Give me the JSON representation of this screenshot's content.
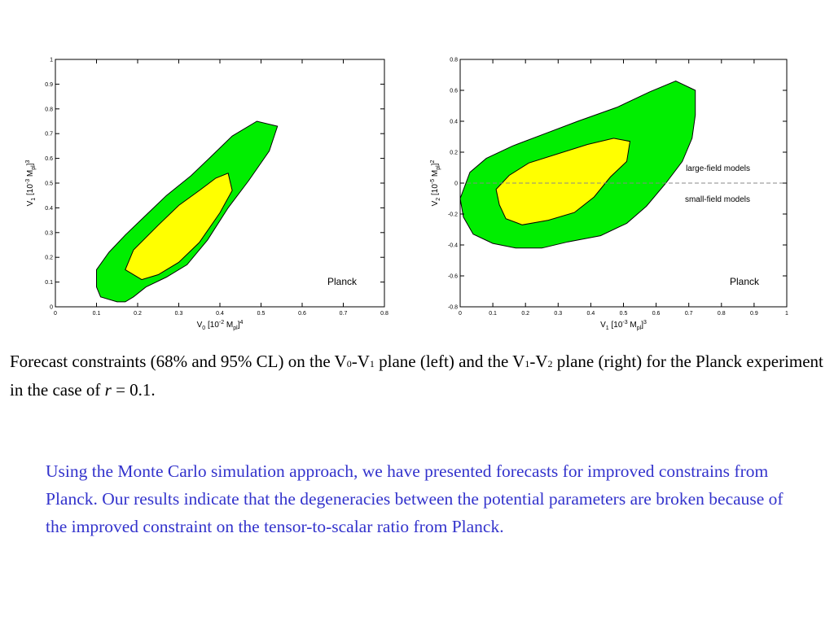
{
  "chart_data": [
    {
      "type": "contour",
      "panel": "left",
      "xlabel": "V0 [10^-2 Mpl]^4",
      "ylabel": "V1 [10^-3 Mpl]^3",
      "xlabel_parts": {
        "base": "V",
        "sub": "0",
        "bracket": " [10",
        "exp": "-2",
        "unit": " M",
        "unit_sub": "pl",
        "close": "]",
        "power": "4"
      },
      "ylabel_parts": {
        "base": "V",
        "sub": "1",
        "bracket": " [10",
        "exp": "-3",
        "unit": " M",
        "unit_sub": "pl",
        "close": "]",
        "power": "3"
      },
      "xlim": [
        0,
        0.8
      ],
      "ylim": [
        0,
        1
      ],
      "xticks": [
        "0",
        "0.1",
        "0.2",
        "0.3",
        "0.4",
        "0.5",
        "0.6",
        "0.7",
        "0.8"
      ],
      "yticks": [
        "0",
        "0.1",
        "0.2",
        "0.3",
        "0.4",
        "0.5",
        "0.6",
        "0.7",
        "0.8",
        "0.9",
        "1"
      ],
      "label": "Planck",
      "contour_95": [
        [
          0.17,
          0.02
        ],
        [
          0.15,
          0.02
        ],
        [
          0.11,
          0.04
        ],
        [
          0.1,
          0.08
        ],
        [
          0.1,
          0.15
        ],
        [
          0.13,
          0.22
        ],
        [
          0.17,
          0.29
        ],
        [
          0.22,
          0.37
        ],
        [
          0.27,
          0.45
        ],
        [
          0.33,
          0.53
        ],
        [
          0.38,
          0.61
        ],
        [
          0.43,
          0.69
        ],
        [
          0.49,
          0.75
        ],
        [
          0.54,
          0.73
        ],
        [
          0.52,
          0.63
        ],
        [
          0.47,
          0.51
        ],
        [
          0.42,
          0.4
        ],
        [
          0.37,
          0.27
        ],
        [
          0.32,
          0.17
        ],
        [
          0.27,
          0.12
        ],
        [
          0.22,
          0.08
        ],
        [
          0.19,
          0.04
        ]
      ],
      "contour_68": [
        [
          0.21,
          0.11
        ],
        [
          0.17,
          0.15
        ],
        [
          0.19,
          0.23
        ],
        [
          0.25,
          0.33
        ],
        [
          0.3,
          0.41
        ],
        [
          0.35,
          0.47
        ],
        [
          0.39,
          0.52
        ],
        [
          0.42,
          0.54
        ],
        [
          0.43,
          0.47
        ],
        [
          0.4,
          0.38
        ],
        [
          0.35,
          0.26
        ],
        [
          0.3,
          0.18
        ],
        [
          0.25,
          0.13
        ]
      ]
    },
    {
      "type": "contour",
      "panel": "right",
      "xlabel": "V1 [10^-3 Mpl]^3",
      "ylabel": "V2 [10^-5 Mpl]^2",
      "xlabel_parts": {
        "base": "V",
        "sub": "1",
        "bracket": " [10",
        "exp": "-3",
        "unit": " M",
        "unit_sub": "pl",
        "close": "]",
        "power": "3"
      },
      "ylabel_parts": {
        "base": "V",
        "sub": "2",
        "bracket": " [10",
        "exp": "-5",
        "unit": " M",
        "unit_sub": "pl",
        "close": "]",
        "power": "2"
      },
      "xlim": [
        0,
        1
      ],
      "ylim": [
        -0.8,
        0.8
      ],
      "xticks": [
        "0",
        "0.1",
        "0.2",
        "0.3",
        "0.4",
        "0.5",
        "0.6",
        "0.7",
        "0.8",
        "0.9",
        "1"
      ],
      "yticks": [
        "-0.8",
        "-0.6",
        "-0.4",
        "-0.2",
        "0",
        "0.2",
        "0.4",
        "0.6",
        "0.8"
      ],
      "reference_line_y": 0,
      "annotations": [
        "large-field models",
        "small-field models"
      ],
      "label": "Planck",
      "contour_95": [
        [
          0.0,
          -0.1
        ],
        [
          0.01,
          -0.22
        ],
        [
          0.04,
          -0.33
        ],
        [
          0.1,
          -0.39
        ],
        [
          0.17,
          -0.42
        ],
        [
          0.25,
          -0.42
        ],
        [
          0.33,
          -0.38
        ],
        [
          0.43,
          -0.34
        ],
        [
          0.51,
          -0.26
        ],
        [
          0.57,
          -0.15
        ],
        [
          0.63,
          0.0
        ],
        [
          0.68,
          0.14
        ],
        [
          0.71,
          0.29
        ],
        [
          0.72,
          0.44
        ],
        [
          0.72,
          0.6
        ],
        [
          0.66,
          0.66
        ],
        [
          0.58,
          0.59
        ],
        [
          0.48,
          0.49
        ],
        [
          0.36,
          0.4
        ],
        [
          0.26,
          0.32
        ],
        [
          0.16,
          0.24
        ],
        [
          0.08,
          0.16
        ],
        [
          0.03,
          0.07
        ]
      ],
      "contour_68": [
        [
          0.12,
          -0.14
        ],
        [
          0.11,
          -0.04
        ],
        [
          0.15,
          0.05
        ],
        [
          0.21,
          0.13
        ],
        [
          0.3,
          0.19
        ],
        [
          0.39,
          0.25
        ],
        [
          0.47,
          0.29
        ],
        [
          0.52,
          0.27
        ],
        [
          0.51,
          0.14
        ],
        [
          0.46,
          0.04
        ],
        [
          0.41,
          -0.09
        ],
        [
          0.35,
          -0.19
        ],
        [
          0.27,
          -0.24
        ],
        [
          0.19,
          -0.27
        ],
        [
          0.14,
          -0.23
        ]
      ]
    }
  ],
  "caption": {
    "part1": "Forecast constraints (68% and 95% CL) on the V",
    "sub1": "0",
    "part2": "-V",
    "sub2": "1",
    "part3": " plane (left) and the V",
    "sub3": "1",
    "part4": "-V",
    "sub4": "2",
    "part5": " plane (right) for the Planck experiment in the case of ",
    "r_symbol": "r",
    "part6": " = 0.1."
  },
  "summary": "Using the Monte Carlo simulation approach, we have presented forecasts for improved constrains from Planck. Our results indicate that the degeneracies between the potential parameters are broken because of the improved constraint on the tensor-to-scalar ratio from Planck.",
  "colors": {
    "contour_95": "#00ee00",
    "contour_68": "#ffff00",
    "summary_text": "#3333cc",
    "axis": "#000000",
    "reference_line": "#888888"
  }
}
